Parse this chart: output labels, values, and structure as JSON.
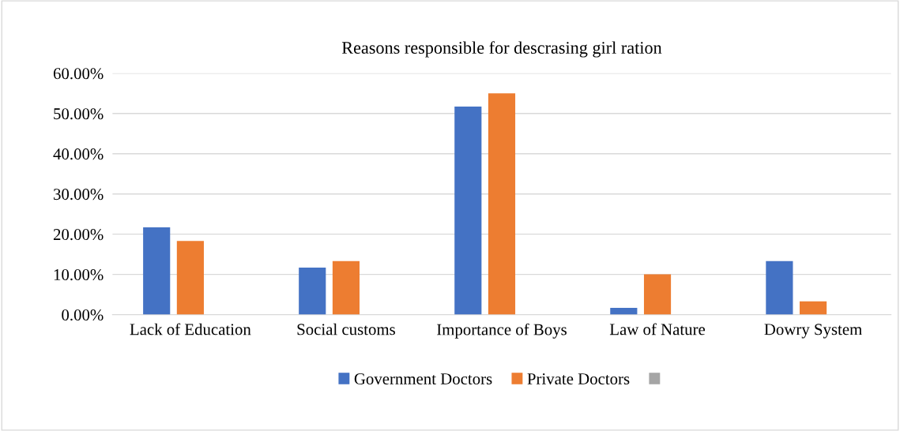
{
  "chart_data": {
    "type": "bar",
    "title": "Reasons responsible for descrasing girl ration",
    "categories": [
      "Lack of Education",
      "Social customs",
      "Importance of Boys",
      "Law of Nature",
      "Dowry System"
    ],
    "series": [
      {
        "name": "Government Doctors",
        "color": "#4472c4",
        "values": [
          21.7,
          11.7,
          51.7,
          1.7,
          13.3
        ]
      },
      {
        "name": "Private Doctors",
        "color": "#ed7d31",
        "values": [
          18.3,
          13.3,
          55.0,
          10.0,
          3.3
        ]
      },
      {
        "color": "#a5a5a5",
        "values": [
          null,
          null,
          null,
          null,
          null
        ]
      }
    ],
    "ylim": [
      0,
      60
    ],
    "yticks": [
      {
        "value": 0,
        "label": "0.00%"
      },
      {
        "value": 10,
        "label": "10.00%"
      },
      {
        "value": 20,
        "label": "20.00%"
      },
      {
        "value": 30,
        "label": "30.00%"
      },
      {
        "value": 40,
        "label": "40.00%"
      },
      {
        "value": 50,
        "label": "50.00%"
      },
      {
        "value": 60,
        "label": "60.00%"
      }
    ],
    "grid": "y",
    "legend": "bottom"
  }
}
